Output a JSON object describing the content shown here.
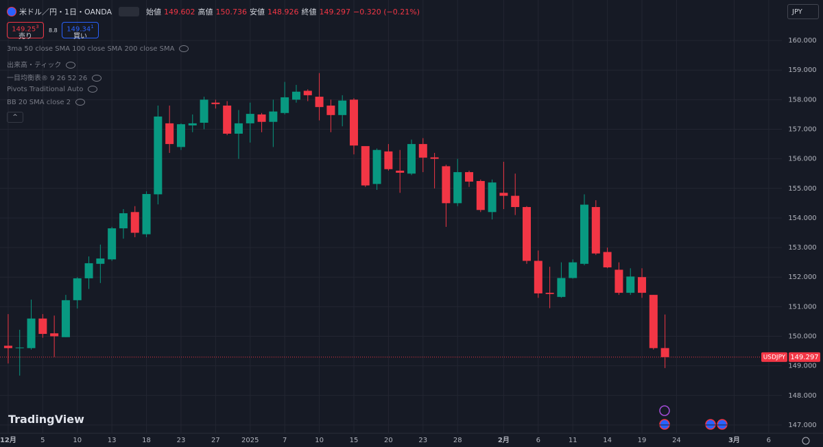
{
  "ui": {
    "symbol": "米ドル／円・1日・OANDA",
    "open_label": "始値",
    "high_label": "高値",
    "low_label": "安値",
    "close_label": "終値",
    "change": "−0.320 (−0.21%)",
    "sell_price": "149.25",
    "sell_sup": "3",
    "sell_label": "売り",
    "spread": "8.8",
    "buy_price": "149.34",
    "buy_sup": "1",
    "buy_label": "買い",
    "indicators": [
      "3ma 50 close SMA 100 close SMA 200 close SMA",
      "出来高・ティック",
      "一目均衡表® 9 26 52 26",
      "Pivots Traditional Auto",
      "BB 20 SMA close 2"
    ],
    "currency": "JPY",
    "logo": "TradingView",
    "price_tag": "USDJPY"
  },
  "chart_data": {
    "type": "candlestick",
    "up_color": "#089981",
    "down_color": "#f23645",
    "grid": true,
    "x": [
      0,
      1,
      2,
      3,
      4,
      5,
      6,
      7,
      8,
      9,
      10,
      11,
      12,
      13,
      14,
      15,
      16,
      17,
      18,
      19,
      20,
      21,
      22,
      23,
      24,
      25,
      26,
      27,
      28,
      29,
      30,
      31,
      32,
      33,
      34,
      35,
      36,
      37,
      38,
      39,
      40,
      41,
      42,
      43,
      44,
      45,
      46,
      47,
      48,
      49,
      50,
      51,
      52,
      53,
      54,
      55,
      56,
      57
    ],
    "open": [
      149.68,
      149.6,
      149.6,
      150.6,
      150.1,
      149.97,
      151.22,
      151.96,
      152.45,
      152.6,
      153.65,
      154.2,
      153.45,
      154.8,
      157.2,
      156.4,
      157.13,
      157.22,
      157.9,
      157.8,
      156.85,
      157.2,
      157.5,
      157.25,
      157.55,
      158.0,
      158.3,
      158.1,
      157.8,
      157.48,
      158.0,
      156.43,
      155.15,
      156.25,
      155.6,
      155.5,
      156.5,
      156.05,
      155.75,
      154.5,
      155.55,
      155.25,
      154.2,
      154.85,
      154.75,
      154.37,
      152.55,
      151.47,
      151.33,
      151.97,
      152.45,
      154.37,
      152.85,
      152.25,
      151.47,
      152.0,
      151.4,
      149.602
    ],
    "high": [
      150.75,
      150.22,
      151.24,
      150.75,
      150.7,
      151.4,
      152.0,
      152.7,
      153.1,
      153.7,
      154.3,
      154.4,
      154.9,
      157.8,
      157.8,
      157.2,
      157.5,
      158.1,
      158.0,
      157.95,
      157.65,
      157.9,
      157.55,
      158.0,
      158.6,
      158.5,
      158.35,
      158.9,
      158.0,
      158.15,
      158.05,
      156.4,
      156.35,
      156.5,
      156.3,
      156.65,
      156.7,
      156.2,
      155.8,
      156.0,
      155.6,
      155.3,
      155.3,
      155.9,
      155.5,
      154.4,
      152.9,
      152.35,
      152.5,
      152.6,
      154.8,
      154.6,
      153.0,
      152.5,
      152.3,
      152.3,
      151.4,
      150.736
    ],
    "low": [
      149.08,
      148.67,
      149.55,
      149.95,
      149.3,
      149.97,
      150.94,
      151.6,
      151.8,
      152.55,
      153.3,
      153.35,
      153.35,
      154.46,
      156.2,
      156.3,
      156.9,
      157.0,
      157.7,
      156.8,
      156.0,
      156.55,
      156.9,
      156.4,
      157.5,
      157.9,
      157.95,
      157.3,
      156.9,
      157.1,
      156.15,
      155.05,
      154.95,
      155.6,
      154.85,
      155.45,
      155.55,
      155.0,
      153.7,
      154.4,
      155.05,
      154.2,
      153.95,
      154.3,
      154.1,
      152.45,
      151.3,
      150.95,
      151.3,
      151.95,
      152.4,
      152.75,
      152.3,
      151.4,
      151.4,
      151.3,
      149.55,
      148.926
    ],
    "close": [
      149.6,
      149.62,
      150.6,
      150.08,
      150.0,
      151.22,
      151.96,
      152.47,
      152.63,
      153.65,
      154.16,
      153.5,
      154.81,
      157.43,
      156.5,
      157.17,
      157.2,
      158.0,
      157.85,
      156.85,
      157.2,
      157.52,
      157.25,
      157.6,
      158.08,
      158.27,
      158.15,
      157.75,
      157.48,
      157.97,
      156.45,
      155.1,
      156.3,
      155.65,
      155.53,
      156.5,
      156.04,
      156.0,
      154.5,
      155.55,
      155.23,
      154.27,
      155.2,
      154.75,
      154.37,
      152.55,
      151.45,
      151.43,
      151.97,
      152.5,
      154.45,
      152.8,
      152.33,
      151.47,
      152.02,
      151.47,
      149.6,
      149.297
    ],
    "ylim": [
      146.72,
      161.37
    ],
    "yticks": [
      {
        "value": 147,
        "label": "147.000"
      },
      {
        "value": 148,
        "label": "148.000"
      },
      {
        "value": 149,
        "label": "149.000"
      },
      {
        "value": 150,
        "label": "150.000"
      },
      {
        "value": 151,
        "label": "151.000"
      },
      {
        "value": 152,
        "label": "152.000"
      },
      {
        "value": 153,
        "label": "153.000"
      },
      {
        "value": 154,
        "label": "154.000"
      },
      {
        "value": 155,
        "label": "155.000"
      },
      {
        "value": 156,
        "label": "156.000"
      },
      {
        "value": 157,
        "label": "157.000"
      },
      {
        "value": 158,
        "label": "158.000"
      },
      {
        "value": 159,
        "label": "159.000"
      },
      {
        "value": 160,
        "label": "160.000"
      }
    ],
    "xlim": [
      -0.71,
      67.14
    ],
    "xticks": [
      {
        "value": 0,
        "label": "12月"
      },
      {
        "value": 3,
        "label": "5"
      },
      {
        "value": 6,
        "label": "10"
      },
      {
        "value": 9,
        "label": "13"
      },
      {
        "value": 12,
        "label": "18"
      },
      {
        "value": 15,
        "label": "23"
      },
      {
        "value": 18,
        "label": "27"
      },
      {
        "value": 21,
        "label": "2025"
      },
      {
        "value": 24,
        "label": "7"
      },
      {
        "value": 27,
        "label": "10"
      },
      {
        "value": 30,
        "label": "15"
      },
      {
        "value": 33,
        "label": "20"
      },
      {
        "value": 36,
        "label": "23"
      },
      {
        "value": 39,
        "label": "28"
      },
      {
        "value": 43,
        "label": "2月"
      },
      {
        "value": 46,
        "label": "6"
      },
      {
        "value": 49,
        "label": "11"
      },
      {
        "value": 52,
        "label": "14"
      },
      {
        "value": 55,
        "label": "19"
      },
      {
        "value": 58,
        "label": "24"
      },
      {
        "value": 63,
        "label": "3月"
      },
      {
        "value": 66,
        "label": "6"
      }
    ]
  }
}
